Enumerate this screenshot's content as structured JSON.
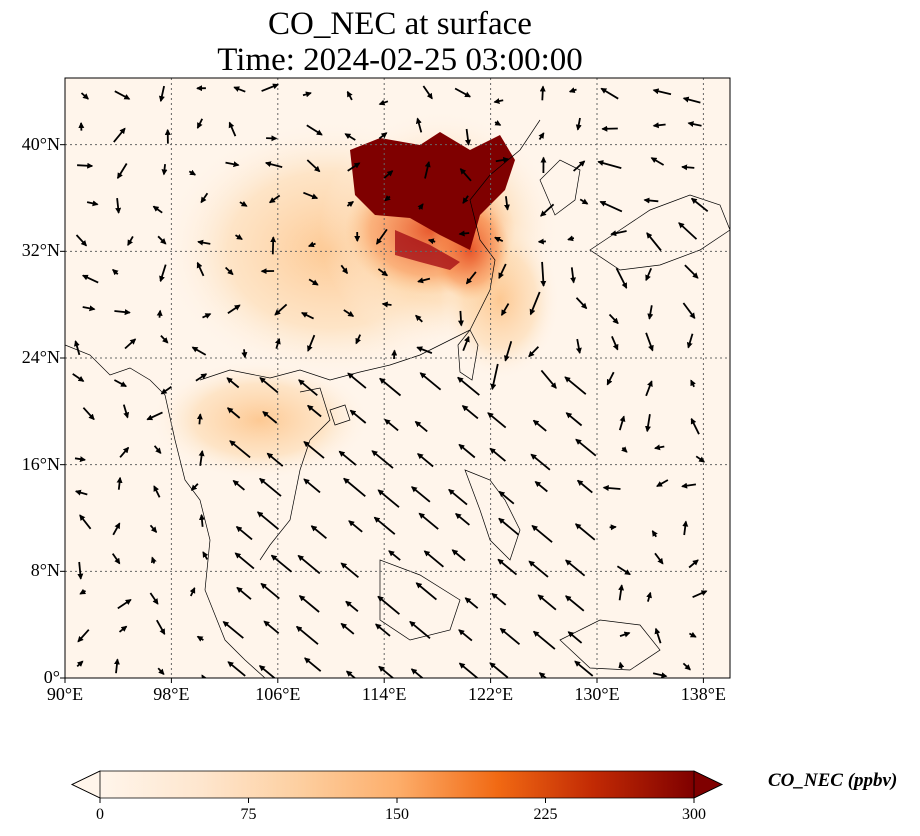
{
  "title": {
    "line1": "CO_NEC at surface",
    "line2": "Time: 2024-02-25 03:00:00"
  },
  "map": {
    "lon_range": [
      90,
      140
    ],
    "lat_range": [
      0,
      45
    ],
    "lat_ticks": [
      {
        "value": 0,
        "label": "0°"
      },
      {
        "value": 8,
        "label": "8°N"
      },
      {
        "value": 16,
        "label": "16°N"
      },
      {
        "value": 24,
        "label": "24°N"
      },
      {
        "value": 32,
        "label": "32°N"
      },
      {
        "value": 40,
        "label": "40°N"
      }
    ],
    "lon_ticks": [
      {
        "value": 90,
        "label": "90°E"
      },
      {
        "value": 98,
        "label": "98°E"
      },
      {
        "value": 106,
        "label": "106°E"
      },
      {
        "value": 114,
        "label": "114°E"
      },
      {
        "value": 122,
        "label": "122°E"
      },
      {
        "value": 130,
        "label": "130°E"
      },
      {
        "value": 138,
        "label": "138°E"
      }
    ],
    "gridlines": true
  },
  "colorbar": {
    "label": "CO_NEC (ppbv)",
    "min": 0,
    "max": 300,
    "extend": "both",
    "colormap": [
      "#fff5eb",
      "#fdd49e",
      "#fdae6b",
      "#f16913",
      "#d7301f",
      "#b30000",
      "#7f0000"
    ],
    "ticks": [
      {
        "value": 0,
        "label": "0"
      },
      {
        "value": 75,
        "label": "75"
      },
      {
        "value": 150,
        "label": "150"
      },
      {
        "value": 225,
        "label": "225"
      },
      {
        "value": 300,
        "label": "300"
      }
    ]
  }
}
